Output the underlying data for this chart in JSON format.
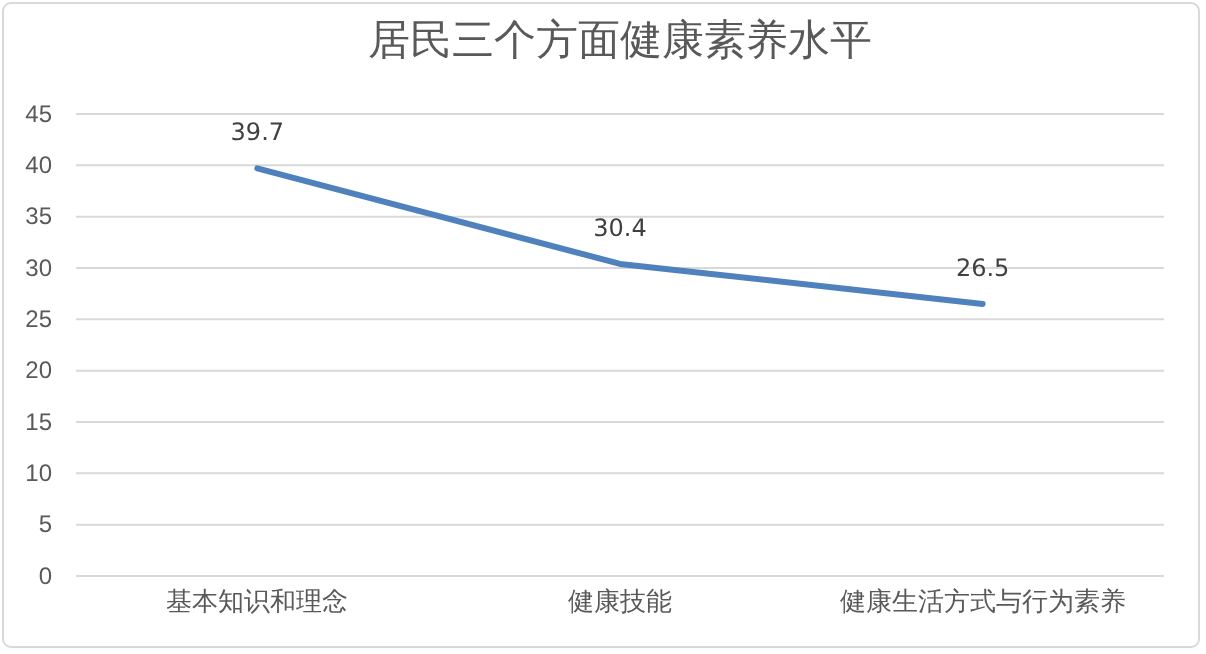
{
  "chart_data": {
    "type": "line",
    "title": "居民三个方面健康素养水平",
    "categories": [
      "基本知识和理念",
      "健康技能",
      "健康生活方式与行为素养"
    ],
    "series": [
      {
        "color": "#4f81bd",
        "values": [
          39.7,
          30.4,
          26.5
        ]
      }
    ],
    "ylim": [
      0,
      45
    ],
    "yticks": [
      0,
      5,
      10,
      15,
      20,
      25,
      30,
      35,
      40,
      45
    ],
    "grid": "y",
    "data_labels": true,
    "marker": "none",
    "line_style": "solid"
  }
}
